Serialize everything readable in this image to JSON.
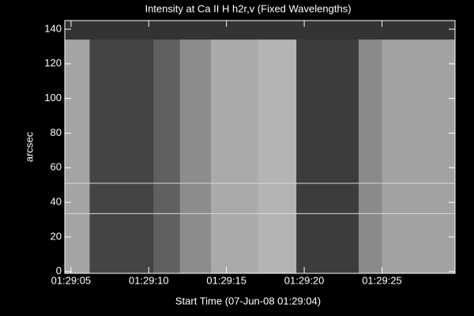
{
  "chart_data": {
    "type": "image",
    "title": "Intensity at Ca II H h2r,v (Fixed Wavelengths)",
    "xlabel": "Start Time (07-Jun-08 01:29:04)",
    "ylabel": "arcsec",
    "xlim": [
      0.6,
      25.7
    ],
    "ylim": [
      -1,
      145
    ],
    "xticks": [
      {
        "value": 1,
        "label": "01:29:05"
      },
      {
        "value": 6,
        "label": "01:29:10"
      },
      {
        "value": 11,
        "label": "01:29:15"
      },
      {
        "value": 16,
        "label": "01:29:20"
      },
      {
        "value": 21,
        "label": "01:29:25"
      }
    ],
    "yticks": [
      0,
      20,
      40,
      60,
      80,
      100,
      120,
      140
    ],
    "background": "#333333",
    "axis_color": "#ffffff",
    "bands": [
      {
        "x0": 0.6,
        "x1": 2.2,
        "y0": -1,
        "y1": 134,
        "color": "#a4a4a4"
      },
      {
        "x0": 2.2,
        "x1": 6.3,
        "y0": -1,
        "y1": 134,
        "color": "#444444"
      },
      {
        "x0": 6.3,
        "x1": 8,
        "y0": -1,
        "y1": 134,
        "color": "#606060"
      },
      {
        "x0": 8,
        "x1": 10,
        "y0": -1,
        "y1": 134,
        "color": "#8c8c8c"
      },
      {
        "x0": 10,
        "x1": 13,
        "y0": -1,
        "y1": 134,
        "color": "#aaaaaa"
      },
      {
        "x0": 13,
        "x1": 15.5,
        "y0": -1,
        "y1": 134,
        "color": "#b4b4b4"
      },
      {
        "x0": 15.5,
        "x1": 19.5,
        "y0": -1,
        "y1": 134,
        "color": "#3c3c3c"
      },
      {
        "x0": 19.5,
        "x1": 21,
        "y0": -1,
        "y1": 134,
        "color": "#8a8a8a"
      },
      {
        "x0": 21,
        "x1": 25.7,
        "y0": -1,
        "y1": 134,
        "color": "#a2a2a2"
      }
    ],
    "hlines": [
      33.5,
      51
    ],
    "hline_color": "#d8d8d8"
  }
}
